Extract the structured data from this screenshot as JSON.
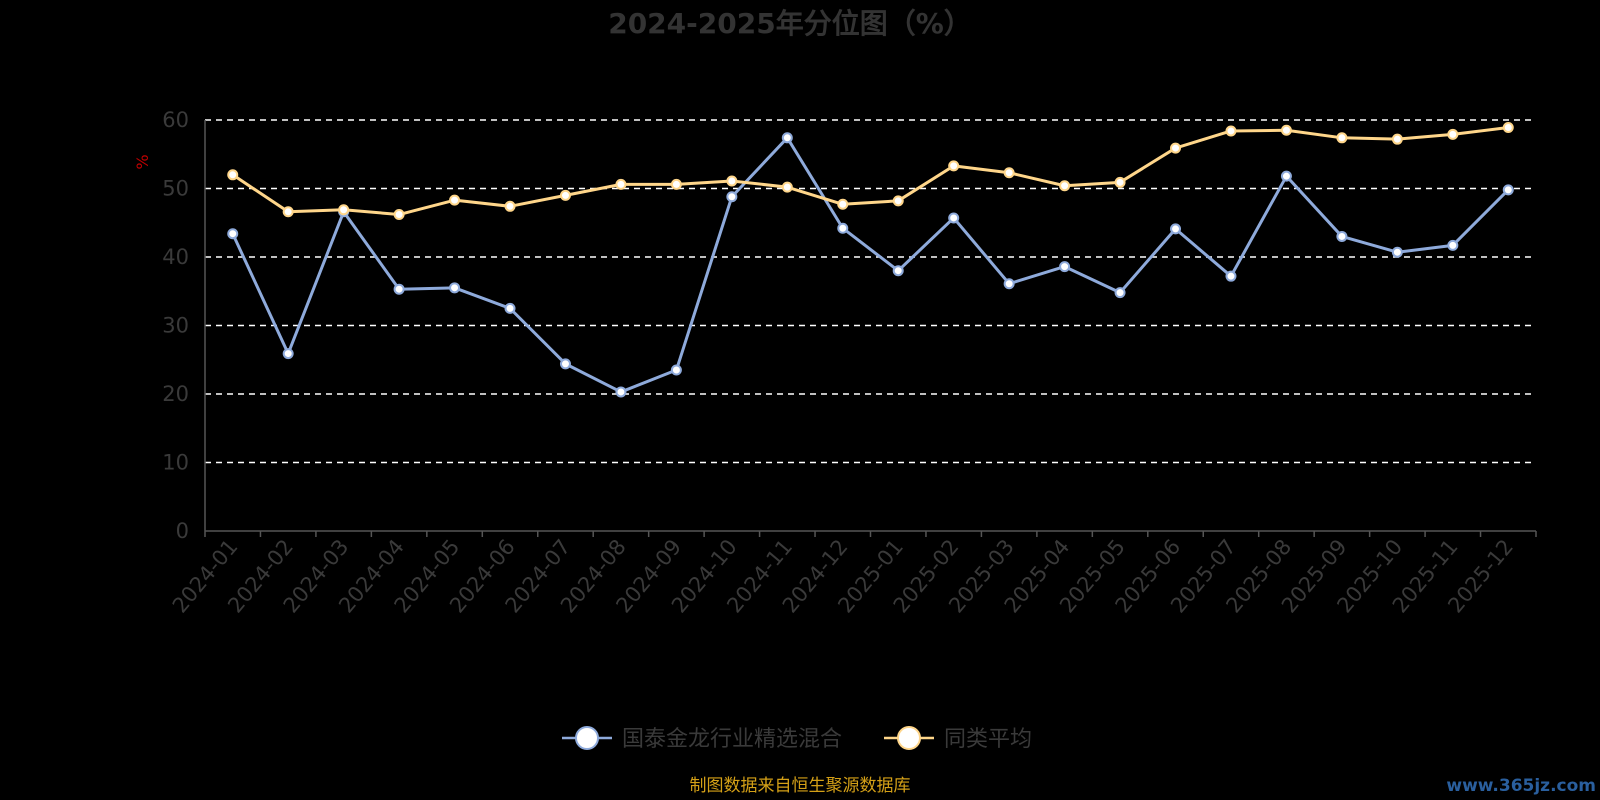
{
  "chart_data": {
    "type": "line",
    "title": "2024-2025年分位图（%）",
    "ylabel": "%",
    "xlabel": "",
    "ylim": [
      0,
      60
    ],
    "yticks": [
      0,
      10,
      20,
      30,
      40,
      50,
      60
    ],
    "grid": true,
    "legend_position": "bottom-center",
    "categories": [
      "2024-01",
      "2024-02",
      "2024-03",
      "2024-04",
      "2024-05",
      "2024-06",
      "2024-07",
      "2024-08",
      "2024-09",
      "2024-10",
      "2024-11",
      "2024-12",
      "2025-01",
      "2025-02",
      "2025-03",
      "2025-04",
      "2025-05",
      "2025-06",
      "2025-07",
      "2025-08",
      "2025-09",
      "2025-10",
      "2025-11",
      "2025-12"
    ],
    "series": [
      {
        "name": "国泰金龙行业精选混合",
        "color": "#8eaadb",
        "values": [
          43.4,
          25.9,
          46.6,
          35.3,
          35.5,
          32.5,
          24.4,
          20.3,
          23.5,
          48.8,
          57.4,
          44.2,
          38.0,
          45.7,
          36.1,
          38.6,
          34.8,
          44.1,
          37.2,
          51.8,
          43.0,
          40.7,
          41.7,
          49.8
        ]
      },
      {
        "name": "同类平均",
        "color": "#ffd68a",
        "values": [
          52.0,
          46.6,
          46.9,
          46.2,
          48.3,
          47.4,
          49.0,
          50.6,
          50.6,
          51.1,
          50.2,
          47.7,
          48.2,
          53.3,
          52.3,
          50.4,
          50.9,
          55.9,
          58.4,
          58.5,
          57.4,
          57.2,
          57.9,
          58.9
        ]
      }
    ],
    "source_note": "制图数据来自恒生聚源数据库",
    "watermark": "www.365jz.com"
  }
}
